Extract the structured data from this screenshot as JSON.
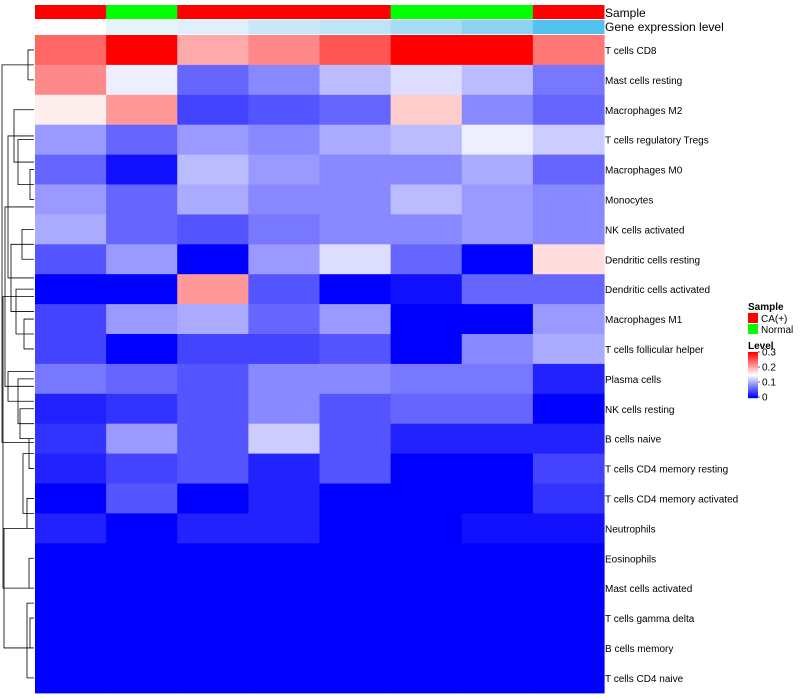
{
  "chart_data": {
    "type": "heatmap",
    "annotation_labels": [
      "Sample",
      "Gene expression level"
    ],
    "sample_annotation": [
      "CA(+)",
      "Normal",
      "CA(+)",
      "CA(+)",
      "CA(+)",
      "Normal",
      "Normal",
      "CA(+)"
    ],
    "expression_annotation": [
      "#ffffff",
      "#e6f3fa",
      "#e0f0fa",
      "#c8e8f8",
      "#c0e4f7",
      "#a8dcf5",
      "#8ed2f2",
      "#52c3ee"
    ],
    "rows": [
      "T cells CD8",
      "Mast cells resting",
      "Macrophages M2",
      "T cells regulatory  Tregs",
      "Macrophages M0",
      "Monocytes",
      "NK cells activated",
      "Dendritic cells resting",
      "Dendritic cells activated",
      "Macrophages M1",
      "T cells follicular helper",
      "Plasma cells",
      "NK cells resting",
      "B cells naive",
      "T cells CD4 memory resting",
      "T cells CD4 memory activated",
      "Neutrophils",
      "Eosinophils",
      "Mast cells activated",
      "T cells gamma delta",
      "B cells memory",
      "T cells CD4 naive"
    ],
    "values": [
      [
        0.24,
        0.3,
        0.2,
        0.22,
        0.25,
        0.3,
        0.3,
        0.23
      ],
      [
        0.22,
        0.14,
        0.06,
        0.08,
        0.11,
        0.13,
        0.11,
        0.07
      ],
      [
        0.16,
        0.21,
        0.04,
        0.05,
        0.06,
        0.18,
        0.08,
        0.06
      ],
      [
        0.09,
        0.06,
        0.09,
        0.08,
        0.1,
        0.11,
        0.14,
        0.12
      ],
      [
        0.06,
        0.01,
        0.11,
        0.09,
        0.08,
        0.08,
        0.1,
        0.06
      ],
      [
        0.09,
        0.06,
        0.1,
        0.08,
        0.08,
        0.11,
        0.09,
        0.08
      ],
      [
        0.1,
        0.06,
        0.05,
        0.07,
        0.08,
        0.08,
        0.09,
        0.08
      ],
      [
        0.05,
        0.09,
        0.0,
        0.09,
        0.13,
        0.06,
        0.0,
        0.17
      ],
      [
        0.0,
        0.0,
        0.21,
        0.05,
        0.0,
        0.01,
        0.06,
        0.06
      ],
      [
        0.04,
        0.09,
        0.1,
        0.06,
        0.09,
        0.0,
        0.0,
        0.09
      ],
      [
        0.04,
        0.0,
        0.04,
        0.04,
        0.05,
        0.0,
        0.08,
        0.1
      ],
      [
        0.07,
        0.06,
        0.05,
        0.08,
        0.08,
        0.07,
        0.07,
        0.02
      ],
      [
        0.02,
        0.03,
        0.05,
        0.08,
        0.05,
        0.06,
        0.06,
        0.0
      ],
      [
        0.03,
        0.09,
        0.05,
        0.12,
        0.05,
        0.02,
        0.02,
        0.02
      ],
      [
        0.02,
        0.04,
        0.05,
        0.02,
        0.05,
        0.0,
        0.0,
        0.04
      ],
      [
        0.0,
        0.05,
        0.0,
        0.02,
        0.0,
        0.0,
        0.0,
        0.03
      ],
      [
        0.02,
        0.0,
        0.02,
        0.02,
        0.0,
        0.0,
        0.01,
        0.01
      ],
      [
        0.0,
        0.0,
        0.0,
        0.0,
        0.0,
        0.0,
        0.0,
        0.0
      ],
      [
        0.0,
        0.0,
        0.0,
        0.0,
        0.0,
        0.0,
        0.0,
        0.0
      ],
      [
        0.0,
        0.0,
        0.0,
        0.0,
        0.0,
        0.0,
        0.0,
        0.0
      ],
      [
        0.0,
        0.0,
        0.0,
        0.0,
        0.0,
        0.0,
        0.0,
        0.0
      ],
      [
        0.0,
        0.0,
        0.0,
        0.0,
        0.0,
        0.0,
        0.0,
        0.0
      ]
    ],
    "color_scale": {
      "min": 0,
      "mid": 0.15,
      "max": 0.3,
      "low_color": "#0000ff",
      "mid_color": "#ffffff",
      "high_color": "#ff0000"
    },
    "legend": {
      "sample_title": "Sample",
      "sample_entries": [
        {
          "label": "CA(+)",
          "color": "#ff0000"
        },
        {
          "label": "Normal",
          "color": "#00ff00"
        }
      ],
      "level_title": "Level",
      "level_ticks": [
        "0.3",
        "0.2",
        "0.1",
        "0"
      ],
      "level_tick_values": [
        0.3,
        0.2,
        0.1,
        0
      ],
      "placement": "right"
    },
    "dendrogram": "left"
  }
}
